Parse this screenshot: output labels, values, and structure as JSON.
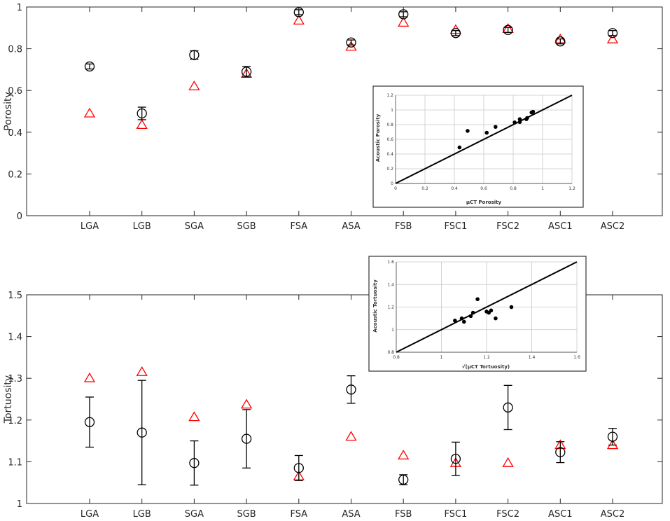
{
  "chart_data": [
    {
      "type": "scatter",
      "categories": [
        "LGA",
        "LGB",
        "SGA",
        "SGB",
        "FSA",
        "ASA",
        "FSB",
        "FSC1",
        "FSC2",
        "ASC1",
        "ASC2"
      ],
      "ylabel": "Porosity",
      "ylim": [
        0,
        1
      ],
      "yticks": [
        0,
        0.2,
        0.4,
        0.6,
        0.8,
        1
      ],
      "ytick_labels": [
        "0",
        "0.2",
        "0.4",
        "0.6",
        "0.8",
        "1"
      ],
      "grid": false,
      "series": [
        {
          "marker": "circle",
          "color": "#000000",
          "values": [
            0.715,
            0.49,
            0.77,
            0.69,
            0.975,
            0.83,
            0.965,
            0.875,
            0.89,
            0.835,
            0.875
          ],
          "err": [
            0.012,
            0.03,
            0.02,
            0.025,
            0.012,
            0.012,
            0.012,
            0.012,
            0.012,
            0.012,
            0.012
          ]
        },
        {
          "marker": "triangle",
          "color": "#ff0000",
          "values": [
            0.49,
            0.435,
            0.62,
            0.68,
            0.935,
            0.81,
            0.925,
            0.89,
            0.895,
            0.845,
            0.845
          ]
        }
      ]
    },
    {
      "type": "scatter",
      "categories": [
        "LGA",
        "LGB",
        "SGA",
        "SGB",
        "FSA",
        "ASA",
        "FSB",
        "FSC1",
        "FSC2",
        "ASC1",
        "ASC2"
      ],
      "ylabel": "Tortuosity",
      "ylim": [
        1,
        1.5
      ],
      "yticks": [
        1,
        1.1,
        1.2,
        1.3,
        1.4,
        1.5
      ],
      "ytick_labels": [
        "1",
        "1.1",
        "1.2",
        "1.3",
        "1.4",
        "1.5"
      ],
      "grid": false,
      "series": [
        {
          "marker": "circle",
          "color": "#000000",
          "values": [
            1.195,
            1.17,
            1.097,
            1.155,
            1.085,
            1.273,
            1.057,
            1.107,
            1.23,
            1.123,
            1.16
          ],
          "err": [
            0.06,
            0.125,
            0.053,
            0.07,
            0.03,
            0.033,
            0.012,
            0.04,
            0.053,
            0.025,
            0.02
          ]
        },
        {
          "marker": "triangle",
          "color": "#ff0000",
          "values": [
            1.3,
            1.315,
            1.207,
            1.237,
            1.065,
            1.16,
            1.115,
            1.097,
            1.097,
            1.14,
            1.14
          ]
        }
      ]
    },
    {
      "type": "scatter",
      "xlabel": "μCT Porosity",
      "ylabel": "Acoustic Porosity",
      "xlim": [
        0,
        1.2
      ],
      "ylim": [
        0,
        1.2
      ],
      "xticks": [
        0,
        0.2,
        0.4,
        0.6,
        0.8,
        1,
        1.2
      ],
      "xtick_labels": [
        "0",
        "0.2",
        "0.4",
        "0.6",
        "0.8",
        "1",
        "1.2"
      ],
      "yticks": [
        0,
        0.2,
        0.4,
        0.6,
        0.8,
        1,
        1.2
      ],
      "ytick_labels": [
        "0",
        "0.2",
        "0.4",
        "0.6",
        "0.8",
        "1",
        "1.2"
      ],
      "grid": true,
      "points": [
        {
          "x": 0.435,
          "y": 0.49
        },
        {
          "x": 0.49,
          "y": 0.715
        },
        {
          "x": 0.62,
          "y": 0.69
        },
        {
          "x": 0.68,
          "y": 0.77
        },
        {
          "x": 0.81,
          "y": 0.83
        },
        {
          "x": 0.845,
          "y": 0.835
        },
        {
          "x": 0.845,
          "y": 0.875
        },
        {
          "x": 0.89,
          "y": 0.875
        },
        {
          "x": 0.895,
          "y": 0.89
        },
        {
          "x": 0.925,
          "y": 0.965
        },
        {
          "x": 0.935,
          "y": 0.975
        }
      ],
      "line": [
        [
          0,
          0
        ],
        [
          1.2,
          1.2
        ]
      ]
    },
    {
      "type": "scatter",
      "xlabel": "√(μCT Tortuosity)",
      "ylabel": "Acoustic Tortuosity",
      "xlim": [
        0.8,
        1.6
      ],
      "ylim": [
        0.8,
        1.6
      ],
      "xticks": [
        0.8,
        1,
        1.2,
        1.4,
        1.6
      ],
      "xtick_labels": [
        "0.8",
        "1",
        "1.2",
        "1.4",
        "1.6"
      ],
      "yticks": [
        0.8,
        1,
        1.2,
        1.4,
        1.6
      ],
      "ytick_labels": [
        "0.8",
        "1",
        "1.2",
        "1.4",
        "1.6"
      ],
      "grid": true,
      "points": [
        {
          "x": 1.06,
          "y": 1.08
        },
        {
          "x": 1.09,
          "y": 1.1
        },
        {
          "x": 1.1,
          "y": 1.07
        },
        {
          "x": 1.13,
          "y": 1.12
        },
        {
          "x": 1.14,
          "y": 1.15
        },
        {
          "x": 1.16,
          "y": 1.27
        },
        {
          "x": 1.2,
          "y": 1.16
        },
        {
          "x": 1.21,
          "y": 1.15
        },
        {
          "x": 1.22,
          "y": 1.17
        },
        {
          "x": 1.24,
          "y": 1.1
        },
        {
          "x": 1.31,
          "y": 1.2
        }
      ],
      "line": [
        [
          0.8,
          0.8
        ],
        [
          1.6,
          1.6
        ]
      ]
    }
  ]
}
